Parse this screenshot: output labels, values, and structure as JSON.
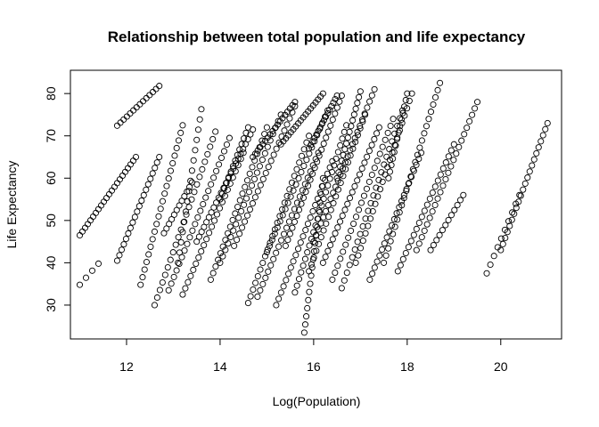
{
  "chart_data": {
    "type": "scatter",
    "title": "Relationship between total population and life expectancy",
    "xlabel": "Log(Population)",
    "ylabel": "Life Expectancy",
    "xlim": [
      10.8,
      21.3
    ],
    "ylim": [
      22,
      85.5
    ],
    "xticks": [
      12,
      14,
      16,
      18,
      20
    ],
    "yticks": [
      30,
      40,
      50,
      60,
      70,
      80
    ],
    "grid": false,
    "legend": "none",
    "point_style": "open-circle",
    "point_color": "#000000",
    "trajectories": [
      {
        "x0": 11.0,
        "y0": 46.5,
        "x1": 12.2,
        "y1": 65.0,
        "n": 22
      },
      {
        "x0": 11.0,
        "y0": 34.8,
        "x1": 11.4,
        "y1": 39.8,
        "n": 4
      },
      {
        "x0": 11.8,
        "y0": 72.4,
        "x1": 12.7,
        "y1": 81.8,
        "n": 14
      },
      {
        "x0": 11.8,
        "y0": 40.5,
        "x1": 12.7,
        "y1": 65.0,
        "n": 20
      },
      {
        "x0": 12.3,
        "y0": 34.8,
        "x1": 13.2,
        "y1": 72.5,
        "n": 22
      },
      {
        "x0": 12.6,
        "y0": 30.0,
        "x1": 13.9,
        "y1": 71.0,
        "n": 24
      },
      {
        "x0": 12.9,
        "y0": 33.5,
        "x1": 14.2,
        "y1": 69.5,
        "n": 24
      },
      {
        "x0": 13.1,
        "y0": 40.0,
        "x1": 13.6,
        "y1": 76.3,
        "n": 16
      },
      {
        "x0": 13.2,
        "y0": 32.5,
        "x1": 14.5,
        "y1": 66.0,
        "n": 24
      },
      {
        "x0": 13.5,
        "y0": 45.0,
        "x1": 14.7,
        "y1": 71.5,
        "n": 24
      },
      {
        "x0": 13.8,
        "y0": 36.0,
        "x1": 15.0,
        "y1": 72.0,
        "n": 24
      },
      {
        "x0": 14.0,
        "y0": 40.0,
        "x1": 15.3,
        "y1": 75.0,
        "n": 24
      },
      {
        "x0": 14.3,
        "y0": 44.0,
        "x1": 15.6,
        "y1": 77.0,
        "n": 24
      },
      {
        "x0": 14.6,
        "y0": 30.5,
        "x1": 15.9,
        "y1": 70.0,
        "n": 26
      },
      {
        "x0": 14.8,
        "y0": 32.0,
        "x1": 16.1,
        "y1": 66.0,
        "n": 24
      },
      {
        "x0": 15.0,
        "y0": 42.5,
        "x1": 16.3,
        "y1": 76.0,
        "n": 24
      },
      {
        "x0": 15.2,
        "y0": 30.0,
        "x1": 16.4,
        "y1": 64.0,
        "n": 24
      },
      {
        "x0": 15.4,
        "y0": 44.0,
        "x1": 16.6,
        "y1": 79.5,
        "n": 26
      },
      {
        "x0": 15.6,
        "y0": 33.0,
        "x1": 16.7,
        "y1": 72.5,
        "n": 26
      },
      {
        "x0": 15.8,
        "y0": 23.5,
        "x1": 16.2,
        "y1": 60.0,
        "n": 20
      },
      {
        "x0": 15.9,
        "y0": 38.0,
        "x1": 17.1,
        "y1": 75.0,
        "n": 24
      },
      {
        "x0": 16.0,
        "y0": 45.0,
        "x1": 17.3,
        "y1": 81.0,
        "n": 26
      },
      {
        "x0": 16.2,
        "y0": 40.0,
        "x1": 17.4,
        "y1": 72.0,
        "n": 24
      },
      {
        "x0": 16.4,
        "y0": 36.0,
        "x1": 17.7,
        "y1": 74.0,
        "n": 24
      },
      {
        "x0": 16.6,
        "y0": 34.0,
        "x1": 17.9,
        "y1": 76.0,
        "n": 24
      },
      {
        "x0": 16.9,
        "y0": 40.0,
        "x1": 18.1,
        "y1": 80.0,
        "n": 24
      },
      {
        "x0": 17.2,
        "y0": 36.0,
        "x1": 18.3,
        "y1": 66.0,
        "n": 22
      },
      {
        "x0": 17.5,
        "y0": 40.0,
        "x1": 18.7,
        "y1": 82.5,
        "n": 26
      },
      {
        "x0": 17.8,
        "y0": 38.0,
        "x1": 19.0,
        "y1": 68.0,
        "n": 22
      },
      {
        "x0": 18.2,
        "y0": 43.0,
        "x1": 19.5,
        "y1": 78.0,
        "n": 24
      },
      {
        "x0": 18.5,
        "y0": 43.0,
        "x1": 19.2,
        "y1": 56.0,
        "n": 12
      },
      {
        "x0": 15.3,
        "y0": 68.0,
        "x1": 16.2,
        "y1": 80.0,
        "n": 18
      },
      {
        "x0": 14.7,
        "y0": 65.0,
        "x1": 15.6,
        "y1": 78.0,
        "n": 18
      },
      {
        "x0": 15.9,
        "y0": 67.0,
        "x1": 16.5,
        "y1": 79.5,
        "n": 16
      },
      {
        "x0": 16.5,
        "y0": 60.0,
        "x1": 17.0,
        "y1": 80.5,
        "n": 16
      },
      {
        "x0": 17.6,
        "y0": 60.0,
        "x1": 18.0,
        "y1": 80.0,
        "n": 14
      },
      {
        "x0": 19.7,
        "y0": 37.5,
        "x1": 20.4,
        "y1": 56.0,
        "n": 10
      },
      {
        "x0": 20.0,
        "y0": 43.0,
        "x1": 21.0,
        "y1": 73.0,
        "n": 22
      },
      {
        "x0": 14.0,
        "y0": 55.0,
        "x1": 14.6,
        "y1": 72.0,
        "n": 14
      },
      {
        "x0": 12.8,
        "y0": 47.0,
        "x1": 13.4,
        "y1": 59.0,
        "n": 12
      }
    ]
  }
}
